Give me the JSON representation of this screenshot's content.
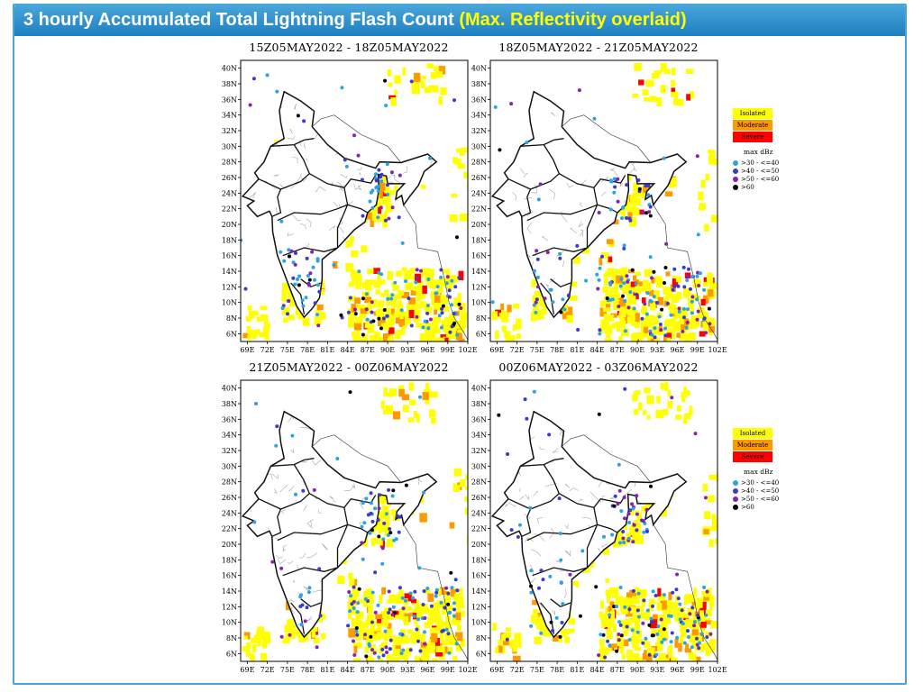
{
  "header": {
    "title_main": "3 hourly Accumulated Total Lightning Flash Count",
    "title_accent": "(Max. Reflectivity overlaid)"
  },
  "panels": [
    {
      "title": "15Z05MAY2022 - 18Z05MAY2022",
      "seed": 11
    },
    {
      "title": "18Z05MAY2022 - 21Z05MAY2022",
      "seed": 23
    },
    {
      "title": "21Z05MAY2022 - 00Z06MAY2022",
      "seed": 37
    },
    {
      "title": "00Z06MAY2022 - 03Z06MAY2022",
      "seed": 53
    }
  ],
  "axes": {
    "lat_labels": [
      "40N",
      "38N",
      "36N",
      "34N",
      "32N",
      "30N",
      "28N",
      "26N",
      "24N",
      "22N",
      "20N",
      "18N",
      "16N",
      "14N",
      "12N",
      "10N",
      "8N",
      "6N"
    ],
    "lon_labels": [
      "69E",
      "72E",
      "75E",
      "78E",
      "81E",
      "84E",
      "87E",
      "90E",
      "93E",
      "96E",
      "99E",
      "102E"
    ]
  },
  "legend": {
    "intensity": [
      {
        "label": "Isolated",
        "color": "#ffff00"
      },
      {
        "label": "Moderate",
        "color": "#ff9900"
      },
      {
        "label": "Severe",
        "color": "#ff0000"
      }
    ],
    "dbz_title": "max dBz",
    "dbz": [
      {
        "label": ">30  -  <=40",
        "color": "#2aa4e0"
      },
      {
        "label": ">40  -  <=50",
        "color": "#3a3ad0"
      },
      {
        "label": ">50  -  <=60",
        "color": "#8a1fb0"
      },
      {
        "label": ">60",
        "color": "#000000"
      }
    ]
  },
  "colors": {
    "isolated": "#ffff00",
    "moderate": "#ff9900",
    "severe": "#ff0000",
    "title_bar": "#2a8fcf"
  }
}
